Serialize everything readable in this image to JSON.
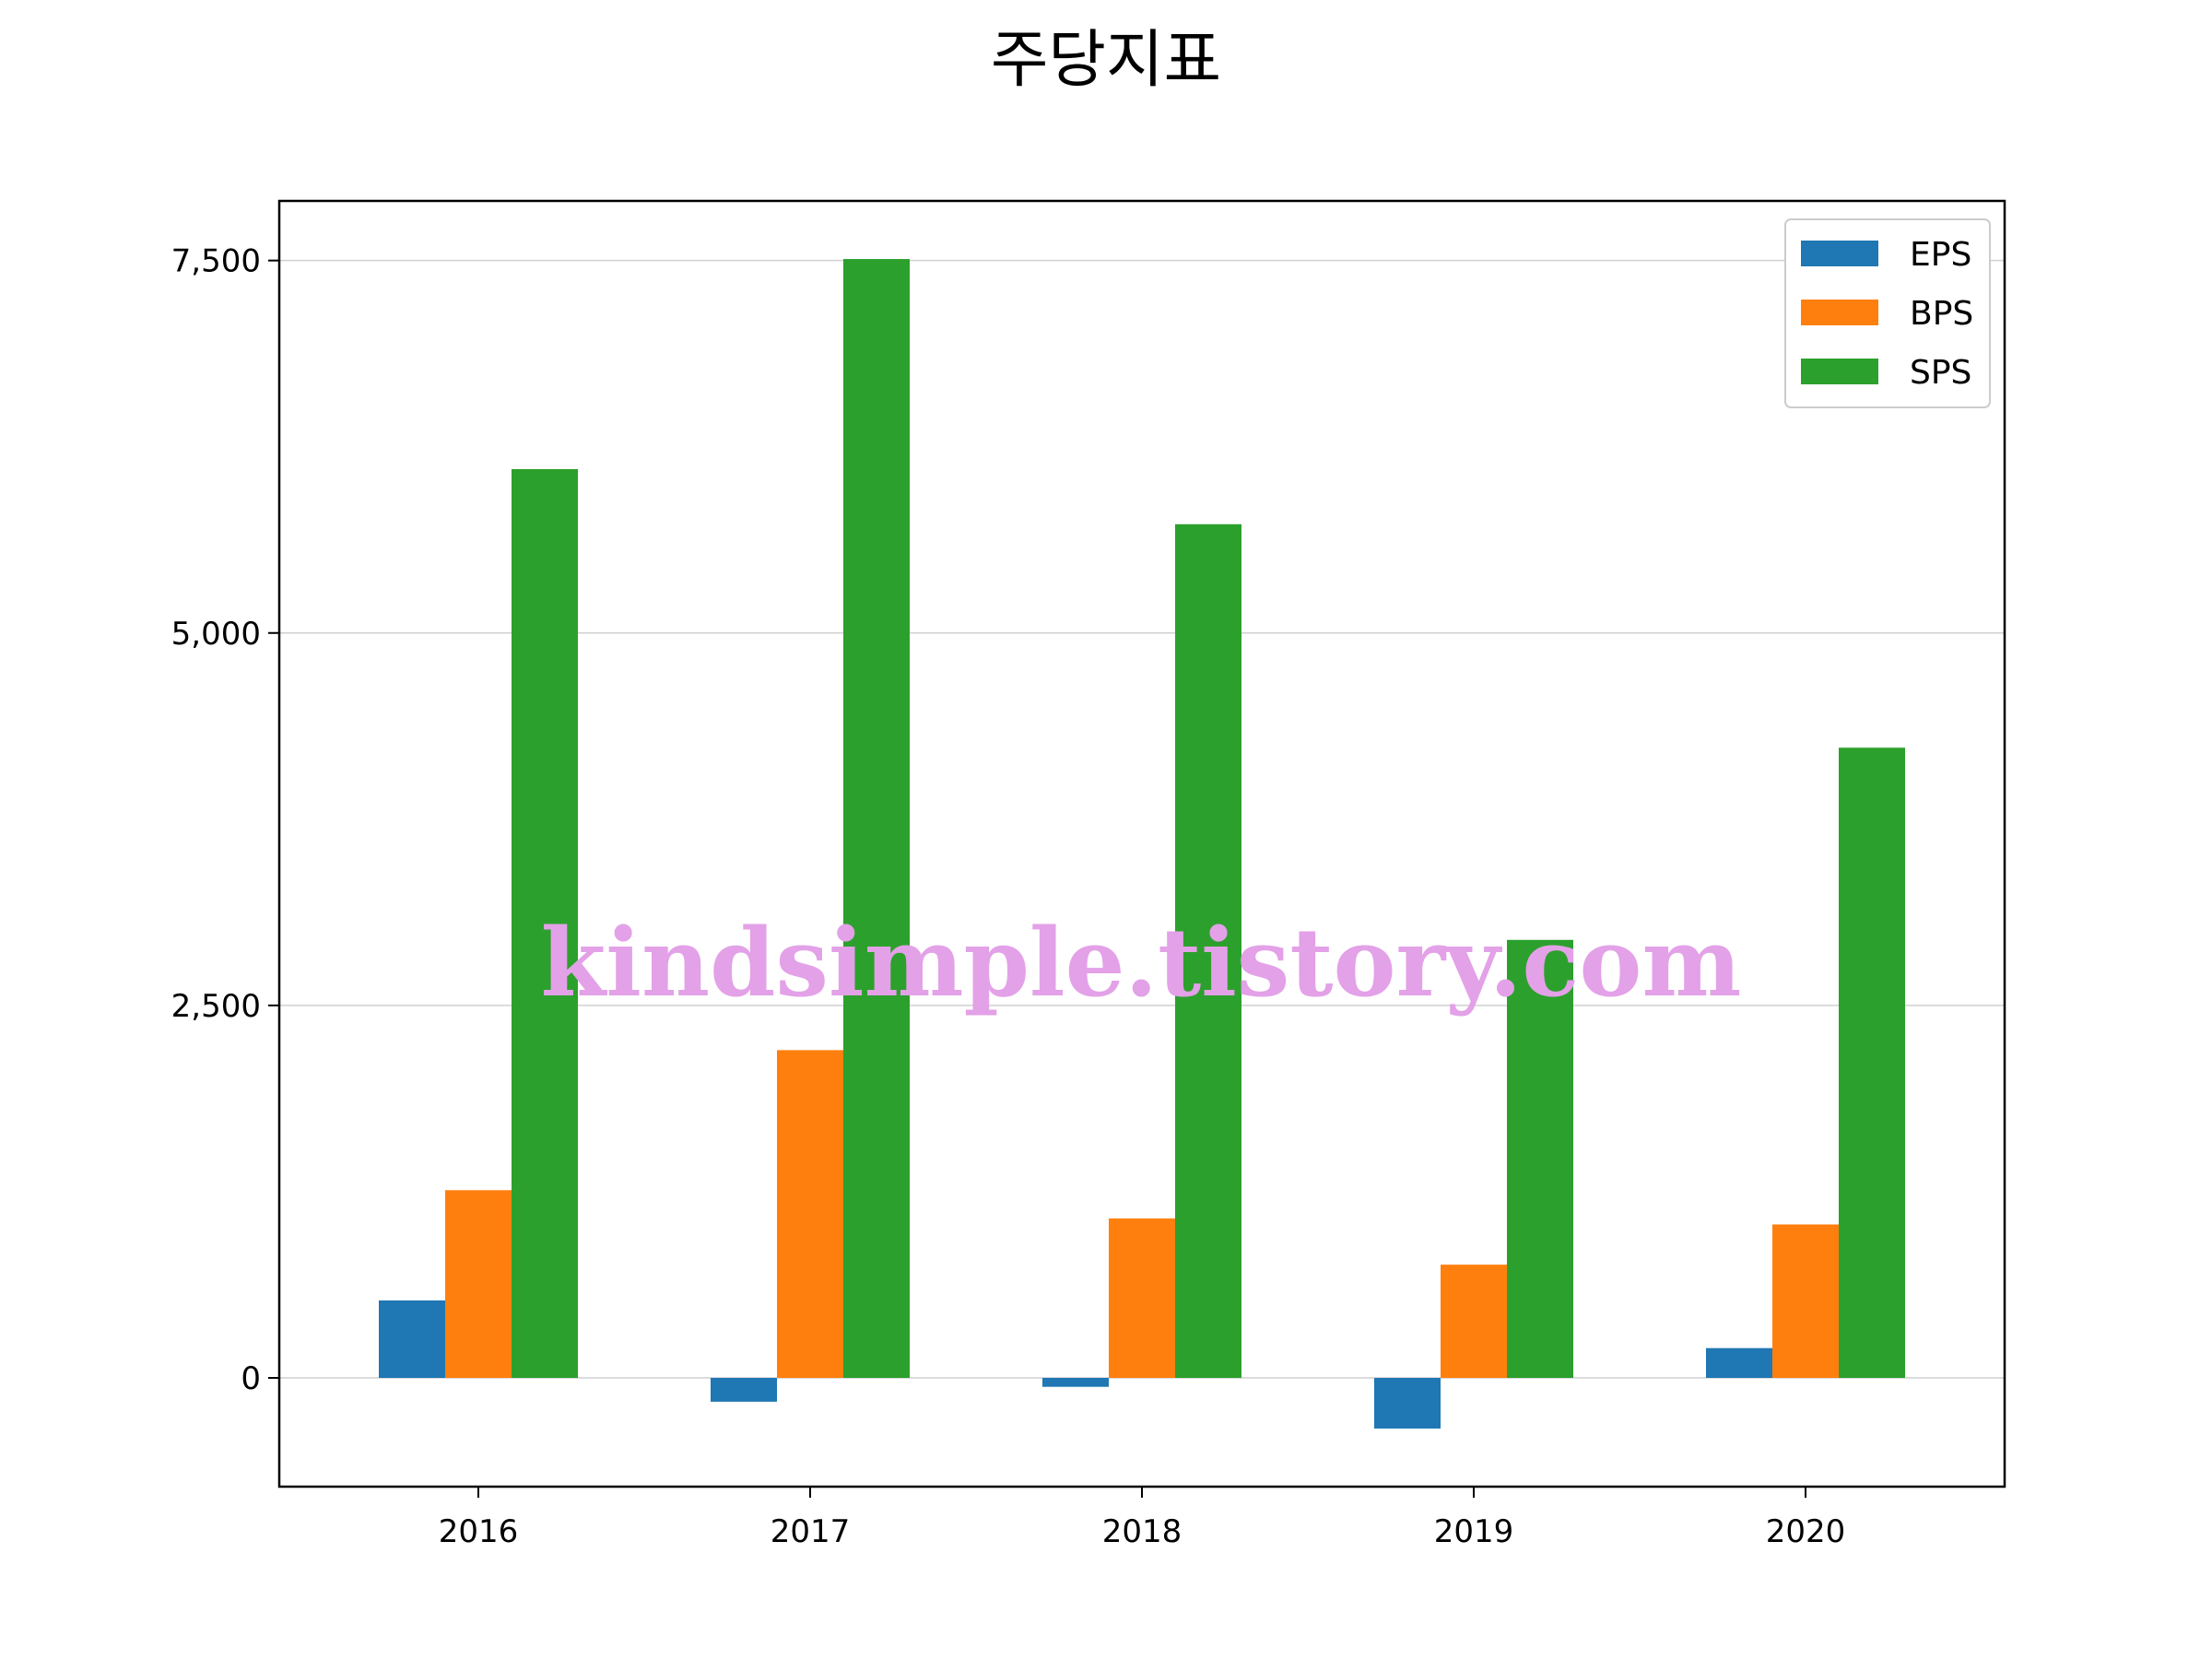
{
  "chart_data": {
    "type": "bar",
    "title": "주당지표",
    "xlabel": "",
    "ylabel": "",
    "categories": [
      "2016",
      "2017",
      "2018",
      "2019",
      "2020"
    ],
    "series": [
      {
        "name": "EPS",
        "values": [
          520,
          -160,
          -60,
          -340,
          200
        ],
        "color": "#1f77b4"
      },
      {
        "name": "BPS",
        "values": [
          1260,
          2200,
          1070,
          760,
          1030
        ],
        "color": "#ff7f0e"
      },
      {
        "name": "SPS",
        "values": [
          6100,
          7510,
          5730,
          2940,
          4230
        ],
        "color": "#2ca02c"
      }
    ],
    "ylim": [
      -730,
      7900
    ],
    "yticks": [
      0,
      2500,
      5000,
      7500
    ],
    "ytick_labels": [
      "0",
      "2,500",
      "5,000",
      "7,500"
    ],
    "grid": "y",
    "legend_position": "top-right"
  },
  "watermark": "kindsimple.tistory.com"
}
